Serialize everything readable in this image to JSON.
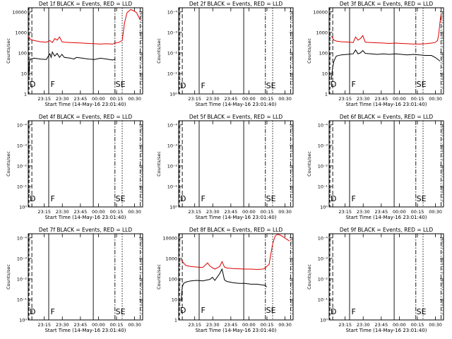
{
  "chart_data": [
    {
      "type": "line",
      "title": "Det 1f BLACK = Events, RED = LLD",
      "xlabel": "Start Time (14-May-16 23:01:40)",
      "ylabel": "Counts/sec",
      "yticks": [
        "1",
        "10",
        "100",
        "1000",
        "10000"
      ],
      "xticks": [
        "23:15",
        "23:30",
        "23:45",
        "00:00",
        "00:15",
        "00:30"
      ],
      "markers": [
        "D",
        "F",
        "SE"
      ],
      "series": [
        {
          "color": "#000000",
          "x": [
            0.1,
            0.5,
            0.7,
            0.9,
            1,
            2,
            5,
            10,
            15,
            18,
            19,
            20,
            22,
            24,
            26,
            28,
            30,
            35,
            38,
            40,
            45,
            50,
            55,
            60,
            65,
            70,
            72,
            73,
            73.5,
            75
          ],
          "y": [
            30,
            8,
            20,
            12,
            40,
            50,
            55,
            50,
            48,
            90,
            60,
            110,
            70,
            95,
            60,
            85,
            60,
            55,
            50,
            60,
            55,
            50,
            48,
            55,
            50,
            45,
            48,
            0,
            0,
            0
          ]
        },
        {
          "color": "#e00000",
          "x": [
            0.1,
            2,
            5,
            10,
            15,
            18,
            20,
            22,
            24,
            26,
            28,
            30,
            35,
            40,
            45,
            50,
            55,
            60,
            65,
            70,
            72,
            75,
            78,
            80,
            82,
            85,
            88,
            90,
            93
          ],
          "y": [
            600,
            450,
            400,
            350,
            330,
            400,
            320,
            500,
            420,
            600,
            350,
            330,
            320,
            310,
            300,
            290,
            280,
            270,
            280,
            270,
            300,
            320,
            400,
            3000,
            9000,
            13000,
            11000,
            9000,
            4000
          ]
        }
      ]
    },
    {
      "type": "line",
      "title": "Det 2f BLACK = Events, RED = LLD",
      "xlabel": "Start Time (14-May-16 23:01:40)",
      "ylabel": "Counts/sec",
      "yticks": [
        "1",
        "10",
        "100",
        "1000",
        "10000"
      ],
      "xticks": [
        "23:15",
        "23:30",
        "23:45",
        "00:00",
        "00:15",
        "00:30"
      ],
      "markers": [
        "D",
        "F",
        "SE"
      ],
      "series": []
    },
    {
      "type": "line",
      "title": "Det 3f BLACK = Events, RED = LLD",
      "xlabel": "Start Time (14-May-16 23:01:40)",
      "ylabel": "Counts/sec",
      "yticks": [
        "1",
        "10",
        "100",
        "1000",
        "10000"
      ],
      "xticks": [
        "23:15",
        "23:30",
        "23:45",
        "00:00",
        "00:15",
        "00:30"
      ],
      "markers": [
        "D",
        "F",
        "SE"
      ],
      "series": [
        {
          "color": "#000000",
          "x": [
            2,
            2.5,
            3,
            4,
            6,
            10,
            15,
            20,
            22,
            24,
            26,
            28,
            30,
            35,
            40,
            45,
            50,
            55,
            60,
            65,
            70,
            75,
            80,
            85,
            88,
            90,
            92
          ],
          "y": [
            5,
            12,
            20,
            40,
            70,
            80,
            85,
            90,
            140,
            90,
            100,
            130,
            95,
            90,
            85,
            90,
            85,
            90,
            85,
            80,
            85,
            80,
            75,
            75,
            60,
            50,
            40
          ]
        },
        {
          "color": "#e00000",
          "x": [
            2,
            4,
            6,
            10,
            15,
            20,
            22,
            24,
            26,
            28,
            30,
            35,
            40,
            45,
            50,
            55,
            60,
            65,
            70,
            75,
            80,
            85,
            88,
            90,
            91,
            92,
            93
          ],
          "y": [
            650,
            420,
            380,
            350,
            340,
            320,
            600,
            420,
            500,
            700,
            330,
            320,
            310,
            300,
            290,
            300,
            290,
            280,
            270,
            270,
            280,
            300,
            320,
            400,
            800,
            3000,
            8000
          ]
        }
      ]
    },
    {
      "type": "line",
      "title": "Det 4f BLACK = Events, RED = LLD",
      "xlabel": "Start Time (14-May-16 23:01:40)",
      "ylabel": "Counts/sec",
      "yticks": [
        "1",
        "10",
        "100",
        "1000",
        "10000"
      ],
      "xticks": [
        "23:15",
        "23:30",
        "23:45",
        "00:00",
        "00:15",
        "00:30"
      ],
      "markers": [
        "D",
        "F",
        "SE"
      ],
      "series": []
    },
    {
      "type": "line",
      "title": "Det 5f BLACK = Events, RED = LLD",
      "xlabel": "Start Time (14-May-16 23:01:40)",
      "ylabel": "Counts/sec",
      "yticks": [
        "1",
        "10",
        "100",
        "1000",
        "10000"
      ],
      "xticks": [
        "23:15",
        "23:30",
        "23:45",
        "00:00",
        "00:15",
        "00:30"
      ],
      "markers": [
        "D",
        "F",
        "SE"
      ],
      "series": []
    },
    {
      "type": "line",
      "title": "Det 6f BLACK = Events, RED = LLD",
      "xlabel": "Start Time (14-May-16 23:01:40)",
      "ylabel": "Counts/sec",
      "yticks": [
        "1",
        "10",
        "100",
        "1000",
        "10000"
      ],
      "xticks": [
        "23:15",
        "23:30",
        "23:45",
        "00:00",
        "00:15",
        "00:30"
      ],
      "markers": [
        "D",
        "F",
        "SE"
      ],
      "series": []
    },
    {
      "type": "line",
      "title": "Det 7f BLACK = Events, RED = LLD",
      "xlabel": "Start Time (14-May-16 23:01:40)",
      "ylabel": "Counts/sec",
      "yticks": [
        "1",
        "10",
        "100",
        "1000",
        "10000"
      ],
      "xticks": [
        "23:15",
        "23:30",
        "23:45",
        "00:00",
        "00:15",
        "00:30"
      ],
      "markers": [
        "D",
        "F",
        "SE"
      ],
      "series": []
    },
    {
      "type": "line",
      "title": "Det 8f BLACK = Events, RED = LLD",
      "xlabel": "Start Time (14-May-16 23:01:40)",
      "ylabel": "Counts/sec",
      "yticks": [
        "1",
        "10",
        "100",
        "1000",
        "10000"
      ],
      "xticks": [
        "23:15",
        "23:30",
        "23:45",
        "00:00",
        "00:15",
        "00:30"
      ],
      "markers": [
        "D",
        "F",
        "SE"
      ],
      "series": [
        {
          "color": "#000000",
          "x": [
            2,
            2.5,
            3,
            4,
            6,
            10,
            15,
            20,
            24,
            26,
            28,
            30,
            34,
            36,
            38,
            40,
            45,
            50,
            55,
            60,
            65,
            70,
            72,
            73,
            75
          ],
          "y": [
            8,
            20,
            40,
            60,
            70,
            80,
            85,
            80,
            90,
            95,
            120,
            85,
            180,
            300,
            90,
            75,
            65,
            60,
            60,
            55,
            55,
            50,
            48,
            40,
            0
          ]
        },
        {
          "color": "#e00000",
          "x": [
            2,
            4,
            6,
            10,
            15,
            20,
            24,
            26,
            28,
            30,
            34,
            36,
            38,
            40,
            45,
            50,
            55,
            60,
            65,
            70,
            72,
            73,
            75,
            78,
            80,
            82,
            85,
            88,
            92
          ],
          "y": [
            900,
            600,
            450,
            400,
            380,
            360,
            600,
            420,
            350,
            300,
            400,
            700,
            380,
            340,
            320,
            310,
            300,
            300,
            290,
            300,
            350,
            400,
            500,
            5000,
            12000,
            15000,
            13000,
            10000,
            7000
          ]
        }
      ]
    },
    {
      "type": "line",
      "title": "Det 9f BLACK = Events, RED = LLD",
      "xlabel": "Start Time (14-May-16 23:01:40)",
      "ylabel": "Counts/sec",
      "yticks": [
        "1",
        "10",
        "100",
        "1000",
        "10000"
      ],
      "xticks": [
        "23:15",
        "23:30",
        "23:45",
        "00:00",
        "00:15",
        "00:30"
      ],
      "markers": [
        "D",
        "F",
        "SE"
      ],
      "series": []
    }
  ]
}
